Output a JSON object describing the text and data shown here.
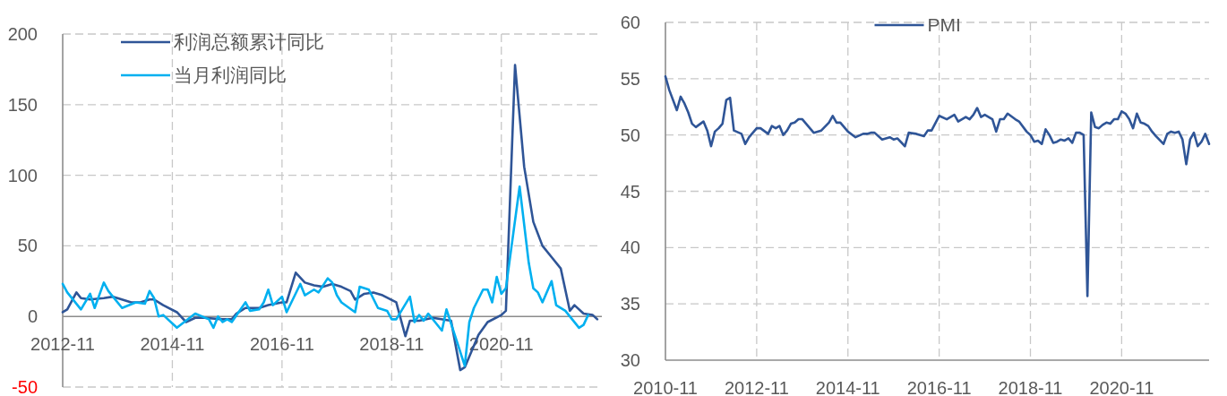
{
  "chart_data": [
    {
      "type": "line",
      "xlim": [
        "2012-11",
        "2022-09"
      ],
      "xticks": [
        "2012-11",
        "2014-11",
        "2016-11",
        "2018-11",
        "2020-11"
      ],
      "ylim": [
        -50,
        200
      ],
      "yticks": [
        -50,
        0,
        50,
        100,
        150,
        200
      ],
      "grid": true,
      "legend": "top left",
      "series": [
        {
          "name": "利润总额累计同比",
          "color": "#2f5597",
          "x": [
            "2012-11",
            "2012-12",
            "2013-02",
            "2013-03",
            "2013-05",
            "2013-08",
            "2013-10",
            "2013-11",
            "2014-02",
            "2014-04",
            "2014-06",
            "2014-07",
            "2014-09",
            "2014-12",
            "2015-02",
            "2015-04",
            "2015-06",
            "2015-10",
            "2015-12",
            "2016-01",
            "2016-03",
            "2016-06",
            "2016-08",
            "2016-11",
            "2016-12",
            "2017-02",
            "2017-04",
            "2017-06",
            "2017-08",
            "2017-10",
            "2017-12",
            "2018-02",
            "2018-03",
            "2018-05",
            "2018-07",
            "2018-09",
            "2018-12",
            "2019-02",
            "2019-03",
            "2019-05",
            "2019-08",
            "2019-12",
            "2020-02",
            "2020-03",
            "2020-06",
            "2020-08",
            "2020-11",
            "2020-12",
            "2021-02",
            "2021-04",
            "2021-06",
            "2021-08",
            "2021-10",
            "2021-12",
            "2022-02",
            "2022-03",
            "2022-05",
            "2022-07",
            "2022-08"
          ],
          "values": [
            3,
            5,
            17,
            13,
            12,
            13,
            14,
            13,
            10,
            10,
            12,
            12,
            8,
            3,
            -4,
            -1,
            -1,
            -2,
            -2,
            2,
            6,
            6,
            8,
            10,
            10,
            31,
            24,
            22,
            21,
            23,
            21,
            18,
            12,
            16,
            17,
            15,
            10,
            -14,
            -3,
            -3,
            -1,
            -3,
            -38,
            -36,
            -13,
            -4,
            1,
            4,
            178,
            106,
            67,
            50,
            42,
            34,
            4,
            8,
            2,
            1,
            -2
          ]
        },
        {
          "name": "当月利润同比",
          "color": "#00b0f0",
          "x": [
            "2012-11",
            "2012-12",
            "2013-03",
            "2013-05",
            "2013-06",
            "2013-08",
            "2013-09",
            "2013-12",
            "2014-03",
            "2014-05",
            "2014-06",
            "2014-07",
            "2014-08",
            "2014-09",
            "2014-12",
            "2015-04",
            "2015-07",
            "2015-08",
            "2015-09",
            "2015-10",
            "2015-11",
            "2015-12",
            "2016-03",
            "2016-04",
            "2016-06",
            "2016-07",
            "2016-08",
            "2016-09",
            "2016-11",
            "2016-12",
            "2017-03",
            "2017-04",
            "2017-06",
            "2017-07",
            "2017-09",
            "2017-10",
            "2017-11",
            "2017-12",
            "2018-03",
            "2018-04",
            "2018-06",
            "2018-08",
            "2018-10",
            "2018-11",
            "2018-12",
            "2019-03",
            "2019-04",
            "2019-05",
            "2019-06",
            "2019-07",
            "2019-10",
            "2019-11",
            "2020-03",
            "2020-04",
            "2020-05",
            "2020-07",
            "2020-08",
            "2020-09",
            "2020-10",
            "2020-11",
            "2020-12",
            "2021-03",
            "2021-05",
            "2021-06",
            "2021-07",
            "2021-08",
            "2021-10",
            "2021-11",
            "2022-01",
            "2022-04",
            "2022-05",
            "2022-06"
          ],
          "values": [
            23,
            17,
            5,
            16,
            6,
            24,
            18,
            6,
            10,
            9,
            18,
            13,
            0,
            1,
            -8,
            2,
            -2,
            -8,
            0,
            -4,
            -2,
            -4,
            10,
            4,
            5,
            10,
            19,
            8,
            14,
            3,
            23,
            15,
            19,
            17,
            27,
            24,
            15,
            10,
            3,
            21,
            19,
            6,
            4,
            -2,
            -2,
            14,
            -4,
            1,
            -3,
            2,
            -10,
            5,
            -35,
            -4,
            6,
            19,
            19,
            10,
            28,
            16,
            20,
            92,
            38,
            20,
            17,
            10,
            25,
            8,
            4,
            -8,
            -6,
            1
          ]
        }
      ]
    },
    {
      "type": "line",
      "xlim": [
        "2010-11",
        "2022-10"
      ],
      "xticks": [
        "2010-11",
        "2012-11",
        "2014-11",
        "2016-11",
        "2018-11",
        "2020-11"
      ],
      "ylim": [
        30,
        60
      ],
      "yticks": [
        30,
        35,
        40,
        45,
        50,
        55,
        60
      ],
      "grid": true,
      "legend": "top",
      "series": [
        {
          "name": "PMI",
          "color": "#2f5597",
          "x": [
            "2010-11",
            "2010-12",
            "2011-02",
            "2011-03",
            "2011-04",
            "2011-05",
            "2011-06",
            "2011-07",
            "2011-09",
            "2011-10",
            "2011-11",
            "2011-12",
            "2012-01",
            "2012-02",
            "2012-03",
            "2012-04",
            "2012-05",
            "2012-07",
            "2012-08",
            "2012-09",
            "2012-11",
            "2012-12",
            "2013-02",
            "2013-03",
            "2013-04",
            "2013-05",
            "2013-06",
            "2013-07",
            "2013-08",
            "2013-09",
            "2013-10",
            "2013-11",
            "2014-02",
            "2014-04",
            "2014-06",
            "2014-07",
            "2014-08",
            "2014-09",
            "2014-11",
            "2015-01",
            "2015-03",
            "2015-04",
            "2015-05",
            "2015-06",
            "2015-08",
            "2015-10",
            "2015-11",
            "2015-12",
            "2016-02",
            "2016-03",
            "2016-05",
            "2016-07",
            "2016-08",
            "2016-09",
            "2016-11",
            "2017-01",
            "2017-03",
            "2017-04",
            "2017-06",
            "2017-07",
            "2017-08",
            "2017-09",
            "2017-10",
            "2017-11",
            "2018-01",
            "2018-02",
            "2018-03",
            "2018-04",
            "2018-05",
            "2018-07",
            "2018-08",
            "2018-10",
            "2018-11",
            "2018-12",
            "2019-01",
            "2019-02",
            "2019-03",
            "2019-04",
            "2019-05",
            "2019-06",
            "2019-07",
            "2019-08",
            "2019-09",
            "2019-10",
            "2019-11",
            "2019-12",
            "2020-01",
            "2020-02",
            "2020-03",
            "2020-04",
            "2020-05",
            "2020-06",
            "2020-07",
            "2020-08",
            "2020-09",
            "2020-10",
            "2020-11",
            "2020-12",
            "2021-01",
            "2021-02",
            "2021-03",
            "2021-04",
            "2021-05",
            "2021-06",
            "2021-07",
            "2021-08",
            "2021-10",
            "2021-11",
            "2021-12",
            "2022-01",
            "2022-02",
            "2022-03",
            "2022-04",
            "2022-05",
            "2022-06",
            "2022-07",
            "2022-08",
            "2022-09",
            "2022-10"
          ],
          "values": [
            55.2,
            54.0,
            52.2,
            53.4,
            52.8,
            52.0,
            51.0,
            50.7,
            51.2,
            50.4,
            49.0,
            50.3,
            50.6,
            51.0,
            53.1,
            53.3,
            50.4,
            50.1,
            49.2,
            49.8,
            50.6,
            50.6,
            50.1,
            50.8,
            50.6,
            50.8,
            50.0,
            50.4,
            51.0,
            51.1,
            51.4,
            51.4,
            50.2,
            50.4,
            51.1,
            51.7,
            51.1,
            51.1,
            50.3,
            49.8,
            50.1,
            50.1,
            50.2,
            50.2,
            49.6,
            49.8,
            49.6,
            49.7,
            49.0,
            50.2,
            50.1,
            49.9,
            50.4,
            50.4,
            51.7,
            51.4,
            51.8,
            51.2,
            51.6,
            51.4,
            51.8,
            52.4,
            51.6,
            51.8,
            51.4,
            50.3,
            51.4,
            51.4,
            51.9,
            51.4,
            51.2,
            50.3,
            50.0,
            49.4,
            49.5,
            49.2,
            50.5,
            50.0,
            49.3,
            49.4,
            49.6,
            49.5,
            49.7,
            49.3,
            50.2,
            50.2,
            50.0,
            35.7,
            52.0,
            50.7,
            50.6,
            50.9,
            51.1,
            51.0,
            51.4,
            51.4,
            52.1,
            51.9,
            51.4,
            50.6,
            51.9,
            51.1,
            51.0,
            50.8,
            50.3,
            49.9,
            49.2,
            50.1,
            50.3,
            50.2,
            50.3,
            49.6,
            47.4,
            49.6,
            50.2,
            49.0,
            49.4,
            50.1,
            49.2
          ]
        }
      ]
    }
  ]
}
